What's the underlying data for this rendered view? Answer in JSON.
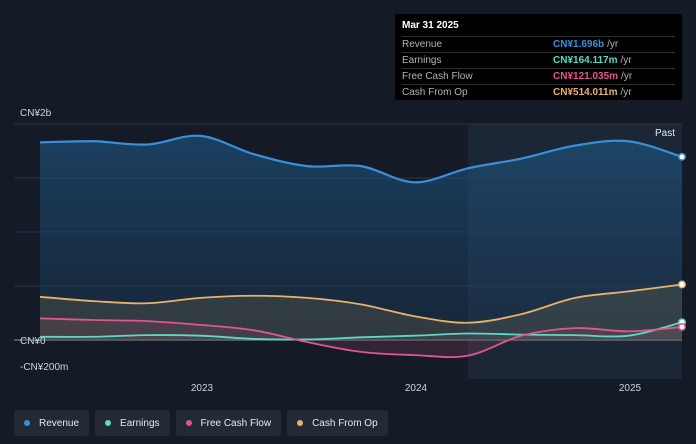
{
  "tooltip": {
    "date": "Mar 31 2025",
    "rows": [
      {
        "label": "Revenue",
        "value": "CN¥1.696b",
        "unit": "/yr",
        "color": "#3a8fd9"
      },
      {
        "label": "Earnings",
        "value": "CN¥164.117m",
        "unit": "/yr",
        "color": "#5fd6c8"
      },
      {
        "label": "Free Cash Flow",
        "value": "CN¥121.035m",
        "unit": "/yr",
        "color": "#e0578a"
      },
      {
        "label": "Cash From Op",
        "value": "CN¥514.011m",
        "unit": "/yr",
        "color": "#e8b26a"
      }
    ]
  },
  "legend": [
    {
      "label": "Revenue",
      "color": "#3a8fd9"
    },
    {
      "label": "Earnings",
      "color": "#5fd6c8"
    },
    {
      "label": "Free Cash Flow",
      "color": "#e0578a"
    },
    {
      "label": "Cash From Op",
      "color": "#e8b26a"
    }
  ],
  "chart_data": {
    "type": "line",
    "y_tick_labels": [
      "CN¥2b",
      "CN¥0",
      "-CN¥200m"
    ],
    "x_tick_labels": [
      "2023",
      "2024",
      "2025"
    ],
    "past_label": "Past",
    "ylim": [
      -200,
      2000
    ],
    "y_units": "CN¥ millions",
    "x_range": [
      2022.25,
      2025.25
    ],
    "past_region_start": 2024.25,
    "series": [
      {
        "name": "Revenue",
        "color": "#3a8fd9",
        "x": [
          2022.25,
          2022.5,
          2022.75,
          2023.0,
          2023.25,
          2023.5,
          2023.75,
          2024.0,
          2024.25,
          2024.5,
          2024.75,
          2025.0,
          2025.25
        ],
        "values": [
          1830,
          1840,
          1810,
          1890,
          1720,
          1610,
          1610,
          1460,
          1590,
          1680,
          1800,
          1840,
          1696
        ]
      },
      {
        "name": "Earnings",
        "color": "#5fd6c8",
        "x": [
          2022.25,
          2022.5,
          2022.75,
          2023.0,
          2023.25,
          2023.5,
          2023.75,
          2024.0,
          2024.25,
          2024.5,
          2024.75,
          2025.0,
          2025.25
        ],
        "values": [
          30,
          30,
          45,
          40,
          10,
          5,
          25,
          40,
          60,
          50,
          45,
          40,
          164.117
        ]
      },
      {
        "name": "Free Cash Flow",
        "color": "#e0578a",
        "x": [
          2022.25,
          2022.5,
          2022.75,
          2023.0,
          2023.25,
          2023.5,
          2023.75,
          2024.0,
          2024.25,
          2024.5,
          2024.75,
          2025.0,
          2025.25
        ],
        "values": [
          200,
          185,
          175,
          140,
          90,
          -20,
          -110,
          -140,
          -145,
          40,
          110,
          80,
          121.035
        ]
      },
      {
        "name": "Cash From Op",
        "color": "#e8b26a",
        "x": [
          2022.25,
          2022.5,
          2022.75,
          2023.0,
          2023.25,
          2023.5,
          2023.75,
          2024.0,
          2024.25,
          2024.5,
          2024.75,
          2025.0,
          2025.25
        ],
        "values": [
          400,
          360,
          340,
          390,
          410,
          390,
          330,
          220,
          160,
          240,
          390,
          450,
          514.011
        ]
      }
    ]
  }
}
